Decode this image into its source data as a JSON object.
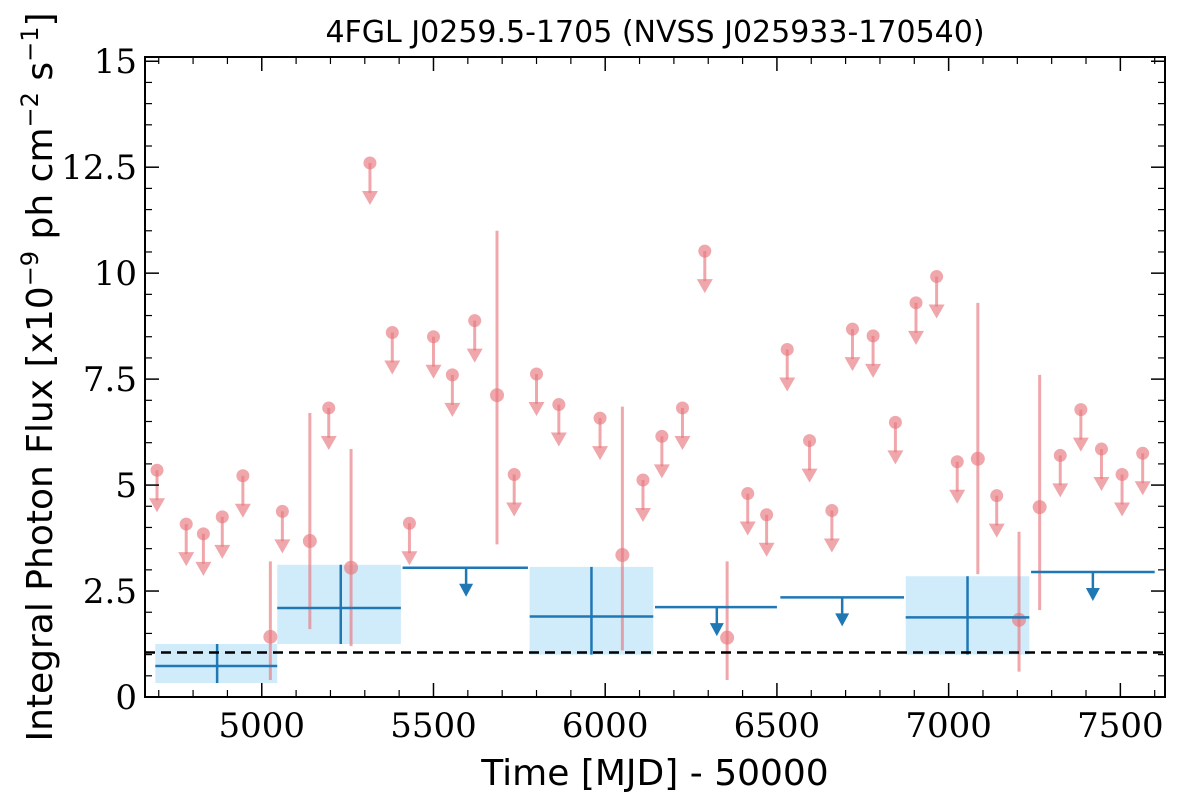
{
  "chart_data": {
    "type": "scatter",
    "title": "4FGL J0259.5-1705 (NVSS J025933-170540)",
    "xlabel": "Time [MJD] - 50000",
    "ylabel": "Integral Photon Flux [x10",
    "ylabel_exp": "−9",
    "ylabel_unit": " ph cm",
    "ylabel_exp2": "−2",
    "ylabel_unit2": " s",
    "ylabel_exp3": "−1",
    "ylabel_close": "]",
    "xlim": [
      4660,
      7630
    ],
    "ylim": [
      0,
      15.1
    ],
    "x_ticks": [
      5000,
      5500,
      6000,
      6500,
      7000,
      7500
    ],
    "x_tick_labels": [
      "5000",
      "5500",
      "6000",
      "6500",
      "7000",
      "7500"
    ],
    "y_ticks": [
      0,
      2.5,
      5,
      7.5,
      10,
      12.5,
      15
    ],
    "y_tick_labels": [
      "0",
      "2.5",
      "5",
      "7.5",
      "10",
      "12.5",
      "15"
    ],
    "grid": false,
    "legend": "none",
    "reference_line": {
      "y": 1.05,
      "style": "dashed",
      "color": "#000000"
    },
    "colors": {
      "fine": "#e8787e",
      "coarse": "#1f77b4",
      "coarse_band": "#aadcf7"
    },
    "fine_bins": {
      "name": "",
      "detections": [
        {
          "x": 5025,
          "y": 1.42,
          "ylo": 0.4,
          "yhi": 3.2
        },
        {
          "x": 5140,
          "y": 3.68,
          "ylo": 1.6,
          "yhi": 6.7
        },
        {
          "x": 5260,
          "y": 3.05,
          "ylo": 1.2,
          "yhi": 5.85
        },
        {
          "x": 5685,
          "y": 7.12,
          "ylo": 3.6,
          "yhi": 11.0
        },
        {
          "x": 6050,
          "y": 3.35,
          "ylo": 1.1,
          "yhi": 6.85
        },
        {
          "x": 6355,
          "y": 1.4,
          "ylo": 0.4,
          "yhi": 3.2
        },
        {
          "x": 7085,
          "y": 5.62,
          "ylo": 2.9,
          "yhi": 9.3
        },
        {
          "x": 7205,
          "y": 1.82,
          "ylo": 0.6,
          "yhi": 3.9
        },
        {
          "x": 7265,
          "y": 4.48,
          "ylo": 2.05,
          "yhi": 7.6
        }
      ],
      "upper_limits": [
        {
          "x": 4695,
          "y": 5.35
        },
        {
          "x": 4780,
          "y": 4.08
        },
        {
          "x": 4830,
          "y": 3.85
        },
        {
          "x": 4885,
          "y": 4.25
        },
        {
          "x": 4945,
          "y": 5.22
        },
        {
          "x": 5060,
          "y": 4.38
        },
        {
          "x": 5195,
          "y": 6.82
        },
        {
          "x": 5315,
          "y": 12.6
        },
        {
          "x": 5380,
          "y": 8.6
        },
        {
          "x": 5430,
          "y": 4.1
        },
        {
          "x": 5500,
          "y": 8.5
        },
        {
          "x": 5555,
          "y": 7.6
        },
        {
          "x": 5620,
          "y": 8.88
        },
        {
          "x": 5735,
          "y": 5.25
        },
        {
          "x": 5800,
          "y": 7.62
        },
        {
          "x": 5865,
          "y": 6.9
        },
        {
          "x": 5985,
          "y": 6.58
        },
        {
          "x": 6110,
          "y": 5.12
        },
        {
          "x": 6165,
          "y": 6.15
        },
        {
          "x": 6225,
          "y": 6.82
        },
        {
          "x": 6290,
          "y": 10.52
        },
        {
          "x": 6415,
          "y": 4.8
        },
        {
          "x": 6470,
          "y": 4.3
        },
        {
          "x": 6530,
          "y": 8.2
        },
        {
          "x": 6595,
          "y": 6.05
        },
        {
          "x": 6660,
          "y": 4.4
        },
        {
          "x": 6720,
          "y": 8.68
        },
        {
          "x": 6780,
          "y": 8.52
        },
        {
          "x": 6845,
          "y": 6.48
        },
        {
          "x": 6905,
          "y": 9.3
        },
        {
          "x": 6965,
          "y": 9.92
        },
        {
          "x": 7025,
          "y": 5.55
        },
        {
          "x": 7140,
          "y": 4.75
        },
        {
          "x": 7325,
          "y": 5.7
        },
        {
          "x": 7385,
          "y": 6.78
        },
        {
          "x": 7445,
          "y": 5.85
        },
        {
          "x": 7505,
          "y": 5.25
        },
        {
          "x": 7565,
          "y": 5.75
        }
      ]
    },
    "coarse_bins": {
      "name": "",
      "detections": [
        {
          "x": 4870,
          "xlo": 4690,
          "xhi": 5045,
          "y": 0.73,
          "ylo": 0.33,
          "yhi": 1.25
        },
        {
          "x": 5230,
          "xlo": 5045,
          "xhi": 5405,
          "y": 2.1,
          "ylo": 1.25,
          "yhi": 3.12
        },
        {
          "x": 5960,
          "xlo": 5780,
          "xhi": 6140,
          "y": 1.9,
          "ylo": 1.0,
          "yhi": 3.07
        },
        {
          "x": 7055,
          "xlo": 6875,
          "xhi": 7235,
          "y": 1.88,
          "ylo": 1.0,
          "yhi": 2.85
        }
      ],
      "upper_limits": [
        {
          "x": 5595,
          "xlo": 5410,
          "xhi": 5775,
          "y": 3.05
        },
        {
          "x": 6325,
          "xlo": 6145,
          "xhi": 6500,
          "y": 2.12
        },
        {
          "x": 6690,
          "xlo": 6510,
          "xhi": 6870,
          "y": 2.35
        },
        {
          "x": 7420,
          "xlo": 7240,
          "xhi": 7600,
          "y": 2.95
        }
      ]
    }
  }
}
